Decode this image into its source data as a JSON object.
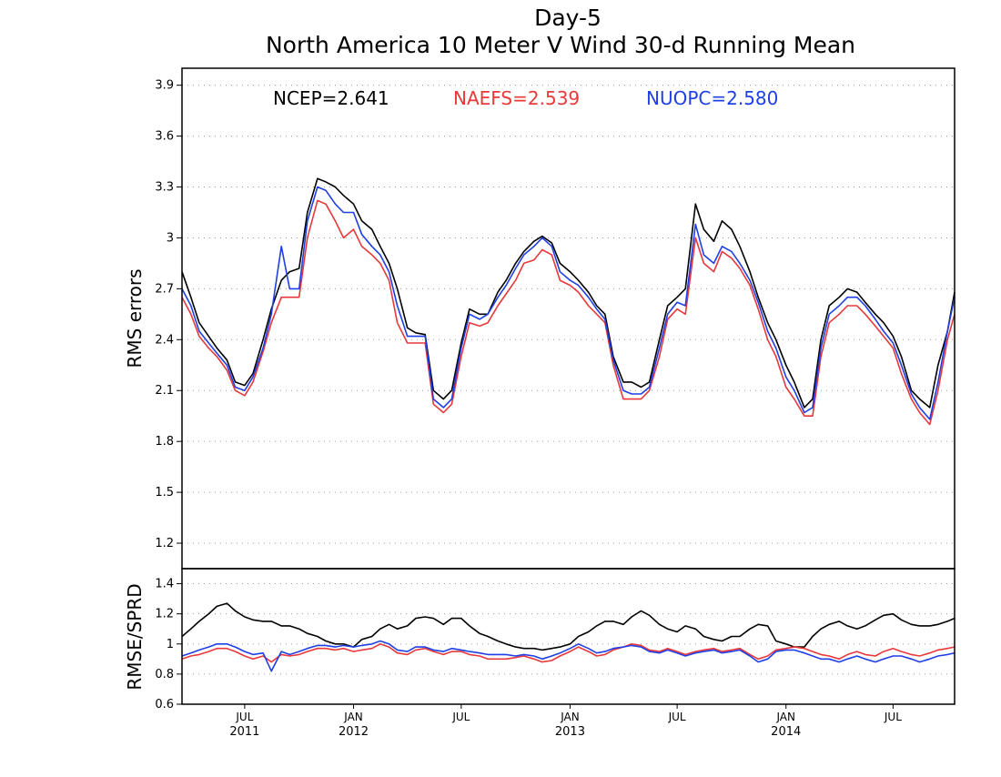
{
  "colors": {
    "ncep": "#000000",
    "naefs": "#e8383a",
    "nuopc": "#1f3fe6",
    "grid": "#9a9a9a",
    "axis": "#000000"
  },
  "chart_data": [
    {
      "type": "line",
      "title_line1": "Day-5",
      "title_line2": "North America 10 Meter V Wind 30-d Running Mean",
      "ylabel": "RMS errors",
      "xlabel": "",
      "ylim": [
        1.05,
        4.0
      ],
      "yticks": [
        "1.2",
        "1.5",
        "1.8",
        "2.1",
        "2.4",
        "2.7",
        "3",
        "3.3",
        "3.6",
        "3.9"
      ],
      "ytick_values": [
        1.2,
        1.5,
        1.8,
        2.1,
        2.4,
        2.7,
        3.0,
        3.3,
        3.6,
        3.9
      ],
      "grid": "horizontal dotted",
      "legend_placement": "top",
      "x_start": "2011-03-17",
      "x_end": "2014-10-13",
      "legend": [
        {
          "series": "NCEP",
          "text": "NCEP=2.641"
        },
        {
          "series": "NAEFS",
          "text": "NAEFS=2.539"
        },
        {
          "series": "NUOPC",
          "text": "NUOPC=2.580"
        }
      ],
      "x_dates": [
        "2011-03-17",
        "2011-04-01",
        "2011-04-15",
        "2011-05-01",
        "2011-05-15",
        "2011-06-01",
        "2011-06-15",
        "2011-07-01",
        "2011-07-15",
        "2011-08-01",
        "2011-08-15",
        "2011-09-01",
        "2011-09-15",
        "2011-10-01",
        "2011-10-15",
        "2011-11-01",
        "2011-11-15",
        "2011-12-01",
        "2011-12-15",
        "2012-01-01",
        "2012-01-15",
        "2012-02-01",
        "2012-02-15",
        "2012-03-01",
        "2012-03-15",
        "2012-04-01",
        "2012-04-15",
        "2012-05-01",
        "2012-05-15",
        "2012-06-01",
        "2012-06-15",
        "2012-07-01",
        "2012-07-15",
        "2012-08-01",
        "2012-08-15",
        "2012-09-01",
        "2012-09-15",
        "2012-10-01",
        "2012-10-15",
        "2012-11-01",
        "2012-11-15",
        "2012-12-01",
        "2012-12-15",
        "2013-01-01",
        "2013-01-15",
        "2013-02-01",
        "2013-02-15",
        "2013-03-01",
        "2013-03-15",
        "2013-04-01",
        "2013-04-15",
        "2013-05-01",
        "2013-05-15",
        "2013-06-01",
        "2013-06-15",
        "2013-07-01",
        "2013-07-15",
        "2013-08-01",
        "2013-08-15",
        "2013-09-01",
        "2013-09-15",
        "2013-10-01",
        "2013-10-15",
        "2013-11-01",
        "2013-11-15",
        "2013-12-01",
        "2013-12-15",
        "2014-01-01",
        "2014-01-15",
        "2014-02-01",
        "2014-02-15",
        "2014-03-01",
        "2014-03-15",
        "2014-04-01",
        "2014-04-15",
        "2014-05-01",
        "2014-05-15",
        "2014-06-01",
        "2014-06-15",
        "2014-07-01",
        "2014-07-15",
        "2014-08-01",
        "2014-08-15",
        "2014-09-01",
        "2014-09-15",
        "2014-10-01",
        "2014-10-13"
      ],
      "series": [
        {
          "name": "NCEP",
          "color_key": "ncep",
          "values": [
            2.8,
            2.65,
            2.5,
            2.42,
            2.35,
            2.28,
            2.15,
            2.13,
            2.2,
            2.4,
            2.58,
            2.75,
            2.8,
            2.82,
            3.15,
            3.35,
            3.33,
            3.3,
            3.25,
            3.2,
            3.1,
            3.05,
            2.95,
            2.85,
            2.7,
            2.47,
            2.44,
            2.43,
            2.1,
            2.05,
            2.1,
            2.38,
            2.58,
            2.55,
            2.55,
            2.68,
            2.75,
            2.85,
            2.92,
            2.98,
            3.01,
            2.97,
            2.85,
            2.8,
            2.75,
            2.68,
            2.6,
            2.55,
            2.3,
            2.15,
            2.15,
            2.12,
            2.15,
            2.4,
            2.6,
            2.65,
            2.7,
            3.2,
            3.05,
            2.98,
            3.1,
            3.05,
            2.95,
            2.8,
            2.65,
            2.5,
            2.4,
            2.25,
            2.15,
            2.0,
            2.05,
            2.4,
            2.6,
            2.65,
            2.7,
            2.68,
            2.62,
            2.55,
            2.5,
            2.42,
            2.3,
            2.1,
            2.05,
            2.0,
            2.25,
            2.45,
            2.68
          ]
        },
        {
          "name": "NAEFS",
          "color_key": "naefs",
          "values": [
            2.65,
            2.55,
            2.42,
            2.35,
            2.3,
            2.22,
            2.1,
            2.07,
            2.15,
            2.33,
            2.5,
            2.65,
            2.65,
            2.65,
            3.0,
            3.22,
            3.2,
            3.1,
            3.0,
            3.05,
            2.95,
            2.9,
            2.85,
            2.75,
            2.5,
            2.38,
            2.38,
            2.38,
            2.02,
            1.97,
            2.02,
            2.3,
            2.5,
            2.48,
            2.5,
            2.6,
            2.67,
            2.75,
            2.85,
            2.87,
            2.93,
            2.9,
            2.75,
            2.72,
            2.68,
            2.6,
            2.55,
            2.5,
            2.25,
            2.05,
            2.05,
            2.05,
            2.1,
            2.3,
            2.52,
            2.58,
            2.55,
            3.0,
            2.85,
            2.8,
            2.92,
            2.88,
            2.82,
            2.72,
            2.58,
            2.4,
            2.3,
            2.12,
            2.05,
            1.95,
            1.95,
            2.3,
            2.5,
            2.55,
            2.6,
            2.6,
            2.55,
            2.48,
            2.42,
            2.35,
            2.2,
            2.05,
            1.97,
            1.9,
            2.1,
            2.4,
            2.55
          ]
        },
        {
          "name": "NUOPC",
          "color_key": "nuopc",
          "values": [
            2.7,
            2.6,
            2.45,
            2.38,
            2.32,
            2.25,
            2.12,
            2.1,
            2.18,
            2.35,
            2.55,
            2.95,
            2.7,
            2.7,
            3.1,
            3.3,
            3.28,
            3.2,
            3.15,
            3.15,
            3.02,
            2.95,
            2.9,
            2.8,
            2.6,
            2.42,
            2.42,
            2.42,
            2.05,
            2.0,
            2.05,
            2.35,
            2.55,
            2.52,
            2.55,
            2.65,
            2.72,
            2.82,
            2.9,
            2.95,
            3.0,
            2.95,
            2.8,
            2.75,
            2.72,
            2.65,
            2.58,
            2.52,
            2.28,
            2.1,
            2.08,
            2.08,
            2.12,
            2.35,
            2.55,
            2.62,
            2.6,
            3.08,
            2.9,
            2.85,
            2.95,
            2.92,
            2.85,
            2.75,
            2.62,
            2.45,
            2.35,
            2.18,
            2.1,
            1.97,
            2.0,
            2.35,
            2.55,
            2.6,
            2.65,
            2.65,
            2.6,
            2.52,
            2.45,
            2.38,
            2.25,
            2.08,
            2.0,
            1.93,
            2.15,
            2.45,
            2.65
          ]
        }
      ]
    },
    {
      "type": "line",
      "ylabel": "RMSE/SPRD",
      "xlabel": "",
      "ylim": [
        0.6,
        1.5
      ],
      "yticks": [
        "0.6",
        "0.8",
        "1",
        "1.2",
        "1.4"
      ],
      "ytick_values": [
        0.6,
        0.8,
        1.0,
        1.2,
        1.4
      ],
      "grid": "horizontal dotted",
      "xticks": [
        {
          "date": "2011-07-01",
          "line1": "JUL",
          "line2": "2011"
        },
        {
          "date": "2012-01-01",
          "line1": "JAN",
          "line2": "2012"
        },
        {
          "date": "2012-07-01",
          "line1": "JUL",
          "line2": ""
        },
        {
          "date": "2013-01-01",
          "line1": "JAN",
          "line2": "2013"
        },
        {
          "date": "2013-07-01",
          "line1": "JUL",
          "line2": ""
        },
        {
          "date": "2014-01-01",
          "line1": "JAN",
          "line2": "2014"
        },
        {
          "date": "2014-07-01",
          "line1": "JUL",
          "line2": ""
        }
      ],
      "x_dates": [
        "2011-03-17",
        "2011-04-01",
        "2011-04-15",
        "2011-05-01",
        "2011-05-15",
        "2011-06-01",
        "2011-06-15",
        "2011-07-01",
        "2011-07-15",
        "2011-08-01",
        "2011-08-15",
        "2011-09-01",
        "2011-09-15",
        "2011-10-01",
        "2011-10-15",
        "2011-11-01",
        "2011-11-15",
        "2011-12-01",
        "2011-12-15",
        "2012-01-01",
        "2012-01-15",
        "2012-02-01",
        "2012-02-15",
        "2012-03-01",
        "2012-03-15",
        "2012-04-01",
        "2012-04-15",
        "2012-05-01",
        "2012-05-15",
        "2012-06-01",
        "2012-06-15",
        "2012-07-01",
        "2012-07-15",
        "2012-08-01",
        "2012-08-15",
        "2012-09-01",
        "2012-09-15",
        "2012-10-01",
        "2012-10-15",
        "2012-11-01",
        "2012-11-15",
        "2012-12-01",
        "2012-12-15",
        "2013-01-01",
        "2013-01-15",
        "2013-02-01",
        "2013-02-15",
        "2013-03-01",
        "2013-03-15",
        "2013-04-01",
        "2013-04-15",
        "2013-05-01",
        "2013-05-15",
        "2013-06-01",
        "2013-06-15",
        "2013-07-01",
        "2013-07-15",
        "2013-08-01",
        "2013-08-15",
        "2013-09-01",
        "2013-09-15",
        "2013-10-01",
        "2013-10-15",
        "2013-11-01",
        "2013-11-15",
        "2013-12-01",
        "2013-12-15",
        "2014-01-01",
        "2014-01-15",
        "2014-02-01",
        "2014-02-15",
        "2014-03-01",
        "2014-03-15",
        "2014-04-01",
        "2014-04-15",
        "2014-05-01",
        "2014-05-15",
        "2014-06-01",
        "2014-06-15",
        "2014-07-01",
        "2014-07-15",
        "2014-08-01",
        "2014-08-15",
        "2014-09-01",
        "2014-09-15",
        "2014-10-01",
        "2014-10-13"
      ],
      "series": [
        {
          "name": "NCEP",
          "color_key": "ncep",
          "values": [
            1.05,
            1.1,
            1.15,
            1.2,
            1.25,
            1.27,
            1.22,
            1.18,
            1.16,
            1.15,
            1.15,
            1.12,
            1.12,
            1.1,
            1.07,
            1.05,
            1.02,
            1.0,
            1.0,
            0.98,
            1.03,
            1.05,
            1.1,
            1.13,
            1.1,
            1.12,
            1.17,
            1.18,
            1.17,
            1.13,
            1.17,
            1.17,
            1.12,
            1.07,
            1.05,
            1.02,
            1.0,
            0.98,
            0.97,
            0.97,
            0.96,
            0.97,
            0.98,
            1.0,
            1.05,
            1.08,
            1.12,
            1.15,
            1.15,
            1.13,
            1.18,
            1.22,
            1.19,
            1.13,
            1.1,
            1.08,
            1.12,
            1.1,
            1.05,
            1.03,
            1.02,
            1.05,
            1.05,
            1.1,
            1.13,
            1.12,
            1.02,
            1.0,
            0.98,
            0.98,
            1.05,
            1.1,
            1.13,
            1.15,
            1.12,
            1.1,
            1.12,
            1.16,
            1.19,
            1.2,
            1.16,
            1.13,
            1.12,
            1.12,
            1.13,
            1.15,
            1.17
          ]
        },
        {
          "name": "NAEFS",
          "color_key": "naefs",
          "values": [
            0.9,
            0.92,
            0.93,
            0.95,
            0.97,
            0.97,
            0.95,
            0.92,
            0.9,
            0.92,
            0.88,
            0.93,
            0.92,
            0.93,
            0.95,
            0.97,
            0.97,
            0.96,
            0.97,
            0.95,
            0.96,
            0.97,
            1.0,
            0.98,
            0.94,
            0.93,
            0.96,
            0.97,
            0.95,
            0.93,
            0.95,
            0.95,
            0.93,
            0.92,
            0.9,
            0.9,
            0.9,
            0.91,
            0.92,
            0.9,
            0.88,
            0.89,
            0.92,
            0.95,
            0.98,
            0.95,
            0.92,
            0.93,
            0.96,
            0.98,
            1.0,
            0.99,
            0.96,
            0.95,
            0.97,
            0.95,
            0.93,
            0.95,
            0.96,
            0.97,
            0.95,
            0.96,
            0.97,
            0.93,
            0.9,
            0.92,
            0.96,
            0.97,
            0.98,
            0.97,
            0.95,
            0.93,
            0.92,
            0.9,
            0.93,
            0.95,
            0.93,
            0.92,
            0.95,
            0.97,
            0.95,
            0.93,
            0.92,
            0.94,
            0.96,
            0.97,
            0.98
          ]
        },
        {
          "name": "NUOPC",
          "color_key": "nuopc",
          "values": [
            0.92,
            0.94,
            0.96,
            0.98,
            1.0,
            1.0,
            0.98,
            0.95,
            0.93,
            0.94,
            0.82,
            0.95,
            0.93,
            0.95,
            0.97,
            0.99,
            0.99,
            0.98,
            0.99,
            0.98,
            0.99,
            1.0,
            1.02,
            1.0,
            0.96,
            0.95,
            0.98,
            0.98,
            0.96,
            0.95,
            0.97,
            0.96,
            0.95,
            0.94,
            0.93,
            0.93,
            0.93,
            0.92,
            0.93,
            0.92,
            0.9,
            0.92,
            0.94,
            0.97,
            1.0,
            0.97,
            0.94,
            0.95,
            0.97,
            0.98,
            0.99,
            0.98,
            0.95,
            0.94,
            0.96,
            0.94,
            0.92,
            0.94,
            0.95,
            0.96,
            0.94,
            0.95,
            0.96,
            0.92,
            0.88,
            0.9,
            0.95,
            0.96,
            0.96,
            0.94,
            0.92,
            0.9,
            0.9,
            0.88,
            0.9,
            0.92,
            0.9,
            0.88,
            0.9,
            0.92,
            0.92,
            0.9,
            0.88,
            0.9,
            0.92,
            0.93,
            0.94
          ]
        }
      ]
    }
  ]
}
